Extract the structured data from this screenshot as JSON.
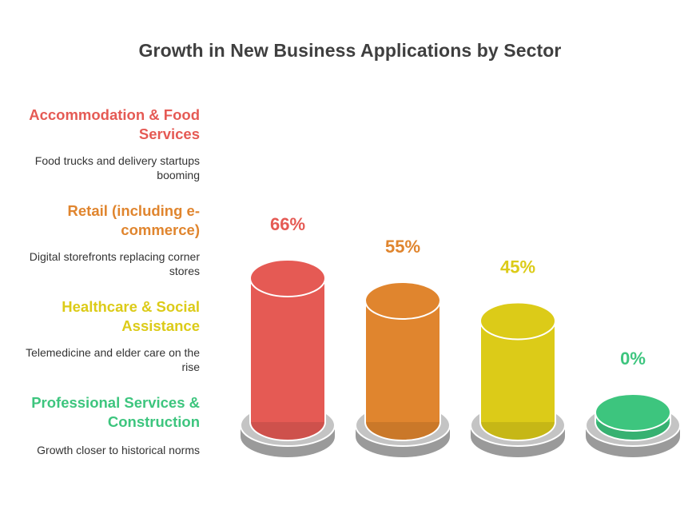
{
  "chart_data": {
    "type": "bar",
    "title": "Growth in New Business Applications by Sector",
    "categories": [
      "Accommodation & Food Services",
      "Retail (including e-commerce)",
      "Healthcare & Social Assistance",
      "Professional Services & Construction"
    ],
    "descriptions": [
      "Food trucks and delivery startups booming",
      "Digital storefronts replacing corner stores",
      "Telemedicine and elder care on the rise",
      "Growth closer to historical norms"
    ],
    "values": [
      66,
      55,
      45,
      0
    ],
    "value_labels": [
      "66%",
      "55%",
      "45%",
      "0%"
    ],
    "colors": [
      "#e55a54",
      "#e0852e",
      "#dccb18",
      "#3dc57e"
    ],
    "ylim": [
      0,
      66
    ],
    "legend_position": "left"
  }
}
